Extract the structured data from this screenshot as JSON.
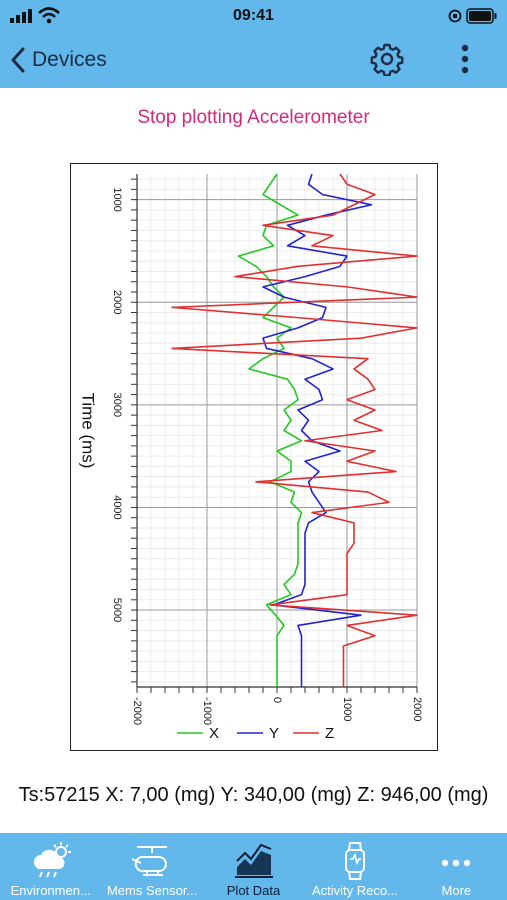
{
  "status_bar": {
    "time": "09:41"
  },
  "nav": {
    "back_label": "Devices"
  },
  "action": {
    "label": "Stop plotting Accelerometer"
  },
  "chart_data": {
    "type": "line",
    "orientation": "rotated-90",
    "xlabel": "Time (ms)",
    "ylabel": "",
    "xlim": [
      750,
      5750
    ],
    "ylim": [
      -2000,
      2000
    ],
    "x_ticks": [
      "1000",
      "2000",
      "3000",
      "4000",
      "5000"
    ],
    "y_ticks": [
      "-2000",
      "-1000",
      "0",
      "1000",
      "2000"
    ],
    "grid": true,
    "legend_position": "bottom",
    "x": [
      750,
      850,
      950,
      1050,
      1150,
      1250,
      1350,
      1450,
      1550,
      1650,
      1750,
      1850,
      1950,
      2050,
      2150,
      2250,
      2350,
      2450,
      2550,
      2650,
      2750,
      2850,
      2950,
      3050,
      3150,
      3250,
      3350,
      3450,
      3550,
      3650,
      3750,
      3850,
      3950,
      4050,
      4150,
      4250,
      4350,
      4450,
      4550,
      4650,
      4750,
      4850,
      4950,
      5050,
      5150,
      5250,
      5350,
      5450,
      5550,
      5650,
      5750
    ],
    "series": [
      {
        "name": "X",
        "color": "#22c922",
        "values": [
          0,
          -100,
          -200,
          50,
          300,
          -150,
          -200,
          -50,
          -550,
          -300,
          -150,
          -50,
          100,
          -50,
          -200,
          200,
          0,
          100,
          -200,
          -400,
          150,
          250,
          300,
          100,
          200,
          100,
          350,
          0,
          200,
          200,
          -100,
          250,
          200,
          350,
          300,
          300,
          300,
          300,
          300,
          250,
          100,
          200,
          -150,
          -20,
          100,
          0,
          0,
          0,
          0,
          0,
          0
        ]
      },
      {
        "name": "Y",
        "color": "#2222d0",
        "values": [
          500,
          450,
          650,
          1350,
          700,
          150,
          400,
          150,
          1000,
          900,
          400,
          -200,
          100,
          700,
          650,
          300,
          -200,
          -150,
          500,
          800,
          400,
          600,
          650,
          300,
          450,
          350,
          500,
          900,
          400,
          600,
          450,
          500,
          600,
          700,
          450,
          400,
          400,
          400,
          400,
          400,
          400,
          350,
          -50,
          1200,
          300,
          350,
          350,
          350,
          350,
          350,
          350
        ]
      },
      {
        "name": "Z",
        "color": "#e03030",
        "values": [
          900,
          1000,
          1400,
          1100,
          800,
          -200,
          800,
          500,
          2000,
          300,
          -600,
          1000,
          2000,
          -1500,
          300,
          2000,
          1200,
          -1500,
          1300,
          1100,
          1300,
          1400,
          1000,
          1400,
          1100,
          1500,
          400,
          1400,
          1000,
          1700,
          -300,
          1300,
          1600,
          500,
          1100,
          1100,
          1100,
          1000,
          1000,
          1000,
          1000,
          1000,
          -100,
          2000,
          1000,
          1400,
          950,
          950,
          950,
          950,
          950
        ]
      }
    ]
  },
  "readout": {
    "text": "Ts:57215 X:  7,00 (mg) Y:  340,00 (mg) Z:  946,00 (mg)"
  },
  "tabs": [
    {
      "label": "Environmen...",
      "icon": "weather-icon"
    },
    {
      "label": "Mems Sensor...",
      "icon": "helicopter-icon"
    },
    {
      "label": "Plot Data",
      "icon": "chart-icon"
    },
    {
      "label": "Activity Reco...",
      "icon": "smartwatch-icon"
    },
    {
      "label": "More",
      "icon": "more-dots-icon"
    }
  ]
}
